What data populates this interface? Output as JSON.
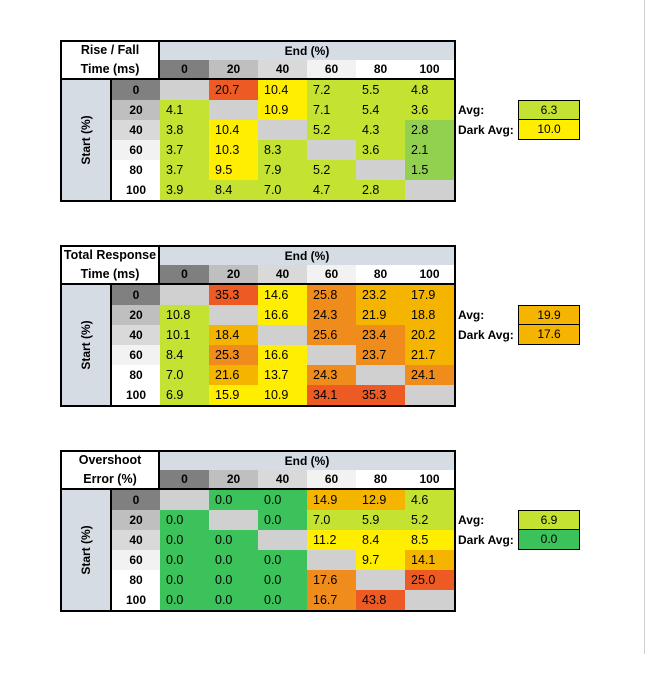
{
  "colors": {
    "header_fill": "#d6dce4",
    "diag_fill": "#d0d0d0",
    "col0_fill": "#7f7f7f",
    "row0_fill": "#808080",
    "light_green": "#92d050",
    "yellow_green": "#c4e231",
    "green": "#3cc25a",
    "yellow": "#ffee00",
    "orange": "#f4b400",
    "dark_orange": "#f08c1c",
    "red_orange": "#ee5a24"
  },
  "col_headers": [
    "0",
    "20",
    "40",
    "60",
    "80",
    "100"
  ],
  "row_headers": [
    "0",
    "20",
    "40",
    "60",
    "80",
    "100"
  ],
  "end_label": "End (%)",
  "start_label": "Start (%)",
  "avg_label": "Avg:",
  "dark_avg_label": "Dark Avg:",
  "tables": [
    {
      "title_line1": "Rise / Fall",
      "title_line2": "Time (ms)",
      "rows": [
        [
          "",
          "20.7",
          "10.4",
          "7.2",
          "5.5",
          "4.8"
        ],
        [
          "4.1",
          "",
          "10.9",
          "7.1",
          "5.4",
          "3.6"
        ],
        [
          "3.8",
          "10.4",
          "",
          "5.2",
          "4.3",
          "2.8"
        ],
        [
          "3.7",
          "10.3",
          "8.3",
          "",
          "3.6",
          "2.1"
        ],
        [
          "3.7",
          "9.5",
          "7.9",
          "5.2",
          "",
          "1.5"
        ],
        [
          "3.9",
          "8.4",
          "7.0",
          "4.7",
          "2.8",
          ""
        ]
      ],
      "colors": [
        [
          "diag",
          "red_orange",
          "yellow",
          "yellow_green",
          "yellow_green",
          "yellow_green"
        ],
        [
          "yellow_green",
          "diag",
          "yellow",
          "yellow_green",
          "yellow_green",
          "yellow_green"
        ],
        [
          "yellow_green",
          "yellow",
          "diag",
          "yellow_green",
          "yellow_green",
          "light_green"
        ],
        [
          "yellow_green",
          "yellow",
          "yellow_green",
          "diag",
          "yellow_green",
          "light_green"
        ],
        [
          "yellow_green",
          "yellow",
          "yellow_green",
          "yellow_green",
          "diag",
          "light_green"
        ],
        [
          "yellow_green",
          "yellow_green",
          "yellow_green",
          "yellow_green",
          "yellow_green",
          "diag"
        ]
      ],
      "avg": "6.3",
      "avg_color": "yellow_green",
      "dark_avg": "10.0",
      "dark_avg_color": "yellow"
    },
    {
      "title_line1": "Total Response",
      "title_line2": "Time (ms)",
      "rows": [
        [
          "",
          "35.3",
          "14.6",
          "25.8",
          "23.2",
          "17.9"
        ],
        [
          "10.8",
          "",
          "16.6",
          "24.3",
          "21.9",
          "18.8"
        ],
        [
          "10.1",
          "18.4",
          "",
          "25.6",
          "23.4",
          "20.2"
        ],
        [
          "8.4",
          "25.3",
          "16.6",
          "",
          "23.7",
          "21.7"
        ],
        [
          "7.0",
          "21.6",
          "13.7",
          "24.3",
          "",
          "24.1"
        ],
        [
          "6.9",
          "15.9",
          "10.9",
          "34.1",
          "35.3",
          ""
        ]
      ],
      "colors": [
        [
          "diag",
          "red_orange",
          "yellow",
          "dark_orange",
          "orange",
          "orange"
        ],
        [
          "yellow_green",
          "diag",
          "yellow",
          "dark_orange",
          "orange",
          "orange"
        ],
        [
          "yellow_green",
          "orange",
          "diag",
          "dark_orange",
          "dark_orange",
          "orange"
        ],
        [
          "yellow_green",
          "dark_orange",
          "yellow",
          "diag",
          "dark_orange",
          "orange"
        ],
        [
          "yellow_green",
          "orange",
          "yellow",
          "dark_orange",
          "diag",
          "dark_orange"
        ],
        [
          "yellow_green",
          "yellow",
          "yellow",
          "red_orange",
          "red_orange",
          "diag"
        ]
      ],
      "avg": "19.9",
      "avg_color": "orange",
      "dark_avg": "17.6",
      "dark_avg_color": "orange"
    },
    {
      "title_line1": "Overshoot",
      "title_line2": "Error (%)",
      "rows": [
        [
          "",
          "0.0",
          "0.0",
          "14.9",
          "12.9",
          "4.6"
        ],
        [
          "0.0",
          "",
          "0.0",
          "7.0",
          "5.9",
          "5.2"
        ],
        [
          "0.0",
          "0.0",
          "",
          "11.2",
          "8.4",
          "8.5"
        ],
        [
          "0.0",
          "0.0",
          "0.0",
          "",
          "9.7",
          "14.1"
        ],
        [
          "0.0",
          "0.0",
          "0.0",
          "17.6",
          "",
          "25.0"
        ],
        [
          "0.0",
          "0.0",
          "0.0",
          "16.7",
          "43.8",
          ""
        ]
      ],
      "colors": [
        [
          "diag",
          "green",
          "green",
          "orange",
          "orange",
          "yellow_green"
        ],
        [
          "green",
          "diag",
          "green",
          "yellow_green",
          "yellow_green",
          "yellow_green"
        ],
        [
          "green",
          "green",
          "diag",
          "yellow",
          "yellow",
          "yellow"
        ],
        [
          "green",
          "green",
          "green",
          "diag",
          "yellow",
          "orange"
        ],
        [
          "green",
          "green",
          "green",
          "dark_orange",
          "diag",
          "red_orange"
        ],
        [
          "green",
          "green",
          "green",
          "dark_orange",
          "red_orange",
          "diag"
        ]
      ],
      "avg": "6.9",
      "avg_color": "yellow_green",
      "dark_avg": "0.0",
      "dark_avg_color": "green"
    }
  ]
}
